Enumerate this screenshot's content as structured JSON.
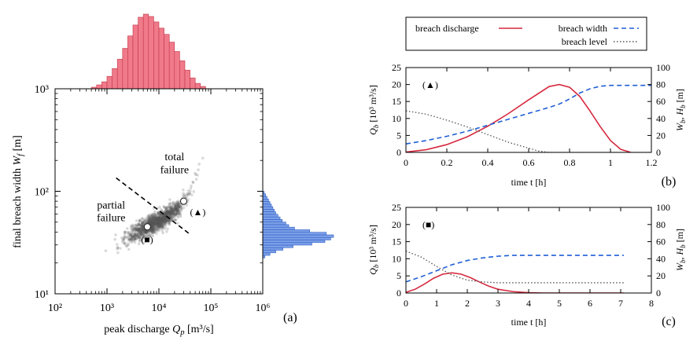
{
  "chart_data": [
    {
      "id": "a",
      "type": "scatter",
      "panel_label": "(a)",
      "xlabel": "peak discharge Q_p [m³/s]",
      "ylabel": "final breach width W_f [m]",
      "x_scale": "log",
      "y_scale": "log",
      "xlim": [
        100,
        1000000
      ],
      "ylim": [
        10,
        1000
      ],
      "x_ticks": [
        {
          "value": 100,
          "label": "10²"
        },
        {
          "value": 1000,
          "label": "10³"
        },
        {
          "value": 10000,
          "label": "10⁴"
        },
        {
          "value": 100000,
          "label": "10⁵"
        },
        {
          "value": 1000000,
          "label": "10⁶"
        }
      ],
      "y_ticks": [
        {
          "value": 10,
          "label": "10¹"
        },
        {
          "value": 100,
          "label": "10²"
        },
        {
          "value": 1000,
          "label": "10³"
        }
      ],
      "cloud_trend": [
        [
          600,
          20
        ],
        [
          2000,
          34
        ],
        [
          6000,
          45
        ],
        [
          12000,
          54
        ],
        [
          25000,
          70
        ],
        [
          40000,
          100
        ],
        [
          60000,
          170
        ],
        [
          90000,
          300
        ]
      ],
      "dividing_line": [
        [
          1500,
          135
        ],
        [
          40000,
          38
        ]
      ],
      "annotations": [
        {
          "text": "total",
          "x": 20000,
          "y": 200
        },
        {
          "text": "failure",
          "x": 20000,
          "y": 150
        },
        {
          "text": "partial",
          "x": 1200,
          "y": 68
        },
        {
          "text": "failure",
          "x": 1200,
          "y": 51
        }
      ],
      "markers": [
        {
          "name": "triangle-case",
          "x": 30000,
          "y": 80,
          "label": "(▲)"
        },
        {
          "name": "square-case",
          "x": 6000,
          "y": 45,
          "label": "(■)"
        }
      ],
      "hist_top": {
        "bin_log_start": 2.7,
        "bin_log_width": 0.1,
        "counts": [
          2,
          5,
          9,
          16,
          26,
          38,
          52,
          68,
          82,
          92,
          96,
          93,
          86,
          78,
          70,
          60,
          48,
          36,
          24,
          14,
          7,
          3
        ]
      },
      "hist_right": {
        "bin_log_start": 1.35,
        "bin_log_width": 0.025,
        "counts": [
          3,
          10,
          18,
          28,
          42,
          68,
          86,
          94,
          98,
          88,
          65,
          44,
          36,
          32,
          27,
          24,
          21,
          18,
          16,
          14,
          12,
          10,
          8,
          6,
          4,
          2
        ]
      },
      "colors": {
        "points": "#555555",
        "hist_top": "#f07a8a",
        "hist_right": "#7b9fe8",
        "marker_fill": "#ffffff"
      }
    },
    {
      "id": "b",
      "type": "line",
      "panel_label": "(b)",
      "xlabel": "time t [h]",
      "ylabel": "Q_b [10³ m³/s]",
      "ylabel_right": "W_b, H_b [m]",
      "xlim": [
        0,
        1.2
      ],
      "ylim": [
        0,
        25
      ],
      "ylim_right": [
        0,
        100
      ],
      "x_ticks": [
        0,
        0.2,
        0.4,
        0.6,
        0.8,
        1,
        1.2
      ],
      "y_ticks": [
        0,
        5,
        10,
        15,
        20,
        25
      ],
      "y_ticks_right": [
        0,
        20,
        40,
        60,
        80,
        100
      ],
      "marker_label": "(▲)",
      "series": [
        {
          "name": "breach discharge",
          "axis": "left",
          "style": "solid",
          "color": "#d6293e",
          "x": [
            0,
            0.1,
            0.2,
            0.3,
            0.4,
            0.5,
            0.6,
            0.7,
            0.75,
            0.8,
            0.85,
            0.9,
            0.95,
            1.0,
            1.05,
            1.1
          ],
          "y": [
            0.1,
            0.8,
            2.3,
            4.6,
            7.7,
            11.4,
            15.5,
            19.4,
            20.0,
            19.2,
            16.5,
            12.2,
            7.6,
            3.5,
            0.9,
            0.0
          ]
        },
        {
          "name": "breach width",
          "axis": "right",
          "style": "dashed",
          "color": "#1f5fd6",
          "x": [
            0,
            0.1,
            0.2,
            0.3,
            0.4,
            0.5,
            0.6,
            0.7,
            0.75,
            0.8,
            0.85,
            0.9,
            0.95,
            1.0,
            1.05,
            1.1,
            1.2
          ],
          "y": [
            10,
            14,
            19,
            25,
            32,
            39,
            46,
            53,
            57,
            63,
            70,
            75,
            78,
            79,
            79,
            79,
            79
          ]
        },
        {
          "name": "breach level",
          "axis": "right",
          "style": "dotted",
          "color": "#555555",
          "x": [
            0,
            0.1,
            0.2,
            0.3,
            0.4,
            0.5,
            0.6,
            0.65,
            0.7,
            0.8,
            1.2
          ],
          "y": [
            49,
            45,
            38,
            30,
            21,
            12,
            5,
            1.5,
            0,
            0,
            0
          ]
        }
      ]
    },
    {
      "id": "c",
      "type": "line",
      "panel_label": "(c)",
      "xlabel": "time t [h]",
      "ylabel": "Q_b [10³ m³/s]",
      "ylabel_right": "W_b, H_b [m]",
      "xlim": [
        0,
        8
      ],
      "ylim": [
        0,
        25
      ],
      "ylim_right": [
        0,
        100
      ],
      "x_ticks": [
        0,
        1,
        2,
        3,
        4,
        5,
        6,
        7,
        8
      ],
      "y_ticks": [
        0,
        5,
        10,
        15,
        20,
        25
      ],
      "y_ticks_right": [
        0,
        20,
        40,
        60,
        80,
        100
      ],
      "marker_label": "(■)",
      "series": [
        {
          "name": "breach discharge",
          "axis": "left",
          "style": "solid",
          "color": "#d6293e",
          "x": [
            0,
            0.3,
            0.6,
            0.9,
            1.2,
            1.5,
            1.8,
            2.1,
            2.4,
            2.7,
            3.0,
            3.5,
            4.0,
            4.5,
            5.0,
            7.1
          ],
          "y": [
            0.2,
            1.1,
            2.6,
            4.3,
            5.5,
            5.9,
            5.5,
            4.5,
            3.2,
            2.0,
            1.1,
            0.4,
            0.1,
            0.0,
            0.0,
            0.0
          ]
        },
        {
          "name": "breach width",
          "axis": "right",
          "style": "dashed",
          "color": "#1f5fd6",
          "x": [
            0,
            0.5,
            1.0,
            1.5,
            2.0,
            2.5,
            3.0,
            3.5,
            4.0,
            5.0,
            6.0,
            7.1
          ],
          "y": [
            13,
            19,
            26,
            33,
            38,
            41,
            43,
            44,
            44,
            44,
            44,
            44
          ]
        },
        {
          "name": "breach level",
          "axis": "right",
          "style": "dotted",
          "color": "#555555",
          "x": [
            0,
            0.5,
            1.0,
            1.5,
            2.0,
            2.5,
            3.0,
            4.0,
            5.0,
            6.0,
            7.1
          ],
          "y": [
            49,
            42,
            31,
            21,
            15,
            13,
            12,
            12,
            12,
            12,
            12
          ]
        }
      ]
    }
  ],
  "legend": {
    "items": [
      {
        "label": "breach discharge",
        "style": "solid",
        "color": "#d6293e"
      },
      {
        "label": "breach width",
        "style": "dashed",
        "color": "#1f5fd6"
      },
      {
        "label": "breach level",
        "style": "dotted",
        "color": "#555555"
      }
    ]
  }
}
